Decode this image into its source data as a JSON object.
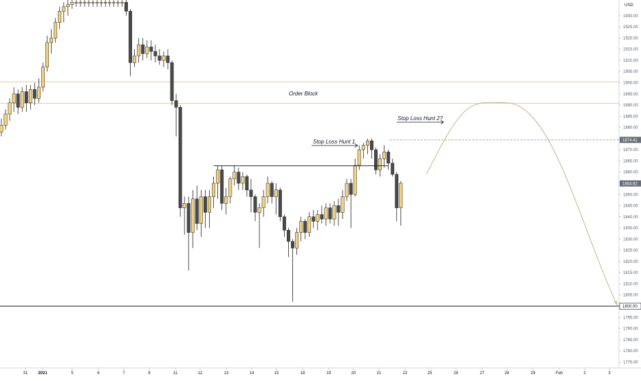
{
  "chart_data": {
    "type": "candlestick",
    "currency": "USD",
    "currency_label": "USD",
    "y_ticks": [
      1930,
      1925,
      1920,
      1915,
      1910,
      1905,
      1900,
      1895,
      1890,
      1885,
      1880,
      1875,
      1870,
      1865,
      1860,
      1855,
      1850,
      1845,
      1840,
      1835,
      1830,
      1825,
      1820,
      1815,
      1810,
      1805,
      1800,
      1795,
      1790,
      1785,
      1780,
      1775
    ],
    "y_tick_labels": [
      "1930.00",
      "1925.00",
      "1920.00",
      "1915.00",
      "1910.00",
      "1905.00",
      "1900.00",
      "1895.00",
      "1890.00",
      "1885.00",
      "1880.00",
      "1875.00",
      "1870.00",
      "1865.00",
      "1860.00",
      "1855.00",
      "1850.00",
      "1845.00",
      "1840.00",
      "1835.00",
      "1830.00",
      "1825.00",
      "1820.00",
      "1815.00",
      "1810.00",
      "1805.00",
      "1800.00",
      "1795.00",
      "1790.00",
      "1785.00",
      "1780.00",
      "1775.00"
    ],
    "date_labels": [
      {
        "label": "31",
        "date": "2020-12-31"
      },
      {
        "label": "2021",
        "date": "2021-01-01"
      },
      {
        "label": "5",
        "date": "2021-01-05"
      },
      {
        "label": "6",
        "date": "2021-01-06"
      },
      {
        "label": "7",
        "date": "2021-01-07"
      },
      {
        "label": "8",
        "date": "2021-01-08"
      },
      {
        "label": "11",
        "date": "2021-01-11"
      },
      {
        "label": "12",
        "date": "2021-01-12"
      },
      {
        "label": "13",
        "date": "2021-01-13"
      },
      {
        "label": "14",
        "date": "2021-01-14"
      },
      {
        "label": "15",
        "date": "2021-01-15"
      },
      {
        "label": "18",
        "date": "2021-01-18"
      },
      {
        "label": "19",
        "date": "2021-01-19"
      },
      {
        "label": "20",
        "date": "2021-01-20"
      },
      {
        "label": "21",
        "date": "2021-01-21"
      },
      {
        "label": "22",
        "date": "2021-01-22"
      },
      {
        "label": "25",
        "date": "2021-01-25"
      },
      {
        "label": "26",
        "date": "2021-01-26"
      },
      {
        "label": "27",
        "date": "2021-01-27"
      },
      {
        "label": "28",
        "date": "2021-01-28"
      },
      {
        "label": "29",
        "date": "2021-01-29"
      },
      {
        "label": "Feb",
        "date": "2021-02-01"
      },
      {
        "label": "2",
        "date": "2021-02-02"
      },
      {
        "label": "3",
        "date": "2021-02-03"
      }
    ],
    "candles": [
      {
        "o": 1878,
        "h": 1884,
        "l": 1876,
        "c": 1881
      },
      {
        "o": 1881,
        "h": 1888,
        "l": 1879,
        "c": 1886
      },
      {
        "o": 1886,
        "h": 1893,
        "l": 1883,
        "c": 1891
      },
      {
        "o": 1891,
        "h": 1898,
        "l": 1887,
        "c": 1895
      },
      {
        "o": 1895,
        "h": 1897,
        "l": 1886,
        "c": 1889
      },
      {
        "o": 1889,
        "h": 1898,
        "l": 1887,
        "c": 1896
      },
      {
        "o": 1896,
        "h": 1899,
        "l": 1887,
        "c": 1891
      },
      {
        "o": 1891,
        "h": 1899,
        "l": 1888,
        "c": 1897
      },
      {
        "o": 1897,
        "h": 1900,
        "l": 1890,
        "c": 1893
      },
      {
        "o": 1893,
        "h": 1902,
        "l": 1891,
        "c": 1898
      },
      {
        "o": 1898,
        "h": 1909,
        "l": 1896,
        "c": 1907
      },
      {
        "o": 1907,
        "h": 1921,
        "l": 1905,
        "c": 1918
      },
      {
        "o": 1918,
        "h": 1924,
        "l": 1913,
        "c": 1920
      },
      {
        "o": 1920,
        "h": 1929,
        "l": 1918,
        "c": 1927
      },
      {
        "o": 1927,
        "h": 1934,
        "l": 1924,
        "c": 1932
      },
      {
        "o": 1932,
        "h": 1936,
        "l": 1927,
        "c": 1934
      },
      {
        "o": 1934,
        "h": 1937,
        "l": 1930,
        "c": 1935
      },
      {
        "o": 1935,
        "h": 1937,
        "l": 1933,
        "c": 1936
      },
      {
        "o": 1936,
        "h": 1937,
        "l": 1934,
        "c": 1936
      },
      {
        "o": 1936,
        "h": 1937,
        "l": 1934,
        "c": 1936
      },
      {
        "o": 1936,
        "h": 1937,
        "l": 1934,
        "c": 1936
      },
      {
        "o": 1936,
        "h": 1937,
        "l": 1934,
        "c": 1936
      },
      {
        "o": 1936,
        "h": 1937,
        "l": 1934,
        "c": 1936
      },
      {
        "o": 1936,
        "h": 1937,
        "l": 1934,
        "c": 1936
      },
      {
        "o": 1936,
        "h": 1937,
        "l": 1934,
        "c": 1936
      },
      {
        "o": 1936,
        "h": 1937,
        "l": 1934,
        "c": 1936
      },
      {
        "o": 1936,
        "h": 1937,
        "l": 1934,
        "c": 1936
      },
      {
        "o": 1936,
        "h": 1937,
        "l": 1934,
        "c": 1936
      },
      {
        "o": 1936,
        "h": 1937,
        "l": 1934,
        "c": 1936
      },
      {
        "o": 1936,
        "h": 1937,
        "l": 1934,
        "c": 1936
      },
      {
        "o": 1936,
        "h": 1937,
        "l": 1930,
        "c": 1932
      },
      {
        "o": 1932,
        "h": 1933,
        "l": 1903,
        "c": 1909
      },
      {
        "o": 1909,
        "h": 1915,
        "l": 1907,
        "c": 1912
      },
      {
        "o": 1912,
        "h": 1920,
        "l": 1909,
        "c": 1917
      },
      {
        "o": 1917,
        "h": 1920,
        "l": 1910,
        "c": 1913
      },
      {
        "o": 1913,
        "h": 1919,
        "l": 1911,
        "c": 1916
      },
      {
        "o": 1916,
        "h": 1919,
        "l": 1910,
        "c": 1914
      },
      {
        "o": 1914,
        "h": 1917,
        "l": 1909,
        "c": 1912
      },
      {
        "o": 1912,
        "h": 1915,
        "l": 1908,
        "c": 1910
      },
      {
        "o": 1910,
        "h": 1914,
        "l": 1907,
        "c": 1912
      },
      {
        "o": 1912,
        "h": 1915,
        "l": 1906,
        "c": 1909
      },
      {
        "o": 1909,
        "h": 1910,
        "l": 1890,
        "c": 1892
      },
      {
        "o": 1892,
        "h": 1895,
        "l": 1876,
        "c": 1889
      },
      {
        "o": 1889,
        "h": 1890,
        "l": 1840,
        "c": 1844
      },
      {
        "o": 1844,
        "h": 1849,
        "l": 1832,
        "c": 1846
      },
      {
        "o": 1846,
        "h": 1849,
        "l": 1816,
        "c": 1833
      },
      {
        "o": 1833,
        "h": 1852,
        "l": 1826,
        "c": 1848
      },
      {
        "o": 1848,
        "h": 1854,
        "l": 1834,
        "c": 1837
      },
      {
        "o": 1837,
        "h": 1852,
        "l": 1831,
        "c": 1849
      },
      {
        "o": 1849,
        "h": 1852,
        "l": 1835,
        "c": 1842
      },
      {
        "o": 1842,
        "h": 1852,
        "l": 1835,
        "c": 1849
      },
      {
        "o": 1849,
        "h": 1858,
        "l": 1844,
        "c": 1855
      },
      {
        "o": 1855,
        "h": 1863,
        "l": 1848,
        "c": 1861
      },
      {
        "o": 1861,
        "h": 1863,
        "l": 1843,
        "c": 1846
      },
      {
        "o": 1846,
        "h": 1853,
        "l": 1841,
        "c": 1849
      },
      {
        "o": 1849,
        "h": 1858,
        "l": 1846,
        "c": 1857
      },
      {
        "o": 1857,
        "h": 1863,
        "l": 1854,
        "c": 1860
      },
      {
        "o": 1860,
        "h": 1862,
        "l": 1852,
        "c": 1855
      },
      {
        "o": 1855,
        "h": 1860,
        "l": 1852,
        "c": 1858
      },
      {
        "o": 1858,
        "h": 1859,
        "l": 1849,
        "c": 1852
      },
      {
        "o": 1852,
        "h": 1857,
        "l": 1842,
        "c": 1849
      },
      {
        "o": 1849,
        "h": 1850,
        "l": 1838,
        "c": 1842
      },
      {
        "o": 1842,
        "h": 1846,
        "l": 1826,
        "c": 1844
      },
      {
        "o": 1844,
        "h": 1852,
        "l": 1840,
        "c": 1849
      },
      {
        "o": 1849,
        "h": 1858,
        "l": 1846,
        "c": 1855
      },
      {
        "o": 1855,
        "h": 1856,
        "l": 1846,
        "c": 1849
      },
      {
        "o": 1849,
        "h": 1855,
        "l": 1841,
        "c": 1852
      },
      {
        "o": 1852,
        "h": 1853,
        "l": 1838,
        "c": 1840
      },
      {
        "o": 1840,
        "h": 1841,
        "l": 1831,
        "c": 1834
      },
      {
        "o": 1834,
        "h": 1835,
        "l": 1822,
        "c": 1829
      },
      {
        "o": 1829,
        "h": 1830,
        "l": 1802,
        "c": 1826
      },
      {
        "o": 1826,
        "h": 1835,
        "l": 1823,
        "c": 1833
      },
      {
        "o": 1833,
        "h": 1840,
        "l": 1829,
        "c": 1838
      },
      {
        "o": 1838,
        "h": 1839,
        "l": 1830,
        "c": 1833
      },
      {
        "o": 1833,
        "h": 1842,
        "l": 1831,
        "c": 1840
      },
      {
        "o": 1840,
        "h": 1843,
        "l": 1835,
        "c": 1838
      },
      {
        "o": 1838,
        "h": 1843,
        "l": 1834,
        "c": 1841
      },
      {
        "o": 1841,
        "h": 1845,
        "l": 1837,
        "c": 1839
      },
      {
        "o": 1839,
        "h": 1846,
        "l": 1836,
        "c": 1844
      },
      {
        "o": 1844,
        "h": 1846,
        "l": 1837,
        "c": 1839
      },
      {
        "o": 1839,
        "h": 1847,
        "l": 1836,
        "c": 1845
      },
      {
        "o": 1845,
        "h": 1848,
        "l": 1836,
        "c": 1842
      },
      {
        "o": 1842,
        "h": 1852,
        "l": 1839,
        "c": 1849
      },
      {
        "o": 1849,
        "h": 1857,
        "l": 1847,
        "c": 1855
      },
      {
        "o": 1855,
        "h": 1857,
        "l": 1835,
        "c": 1850
      },
      {
        "o": 1850,
        "h": 1866,
        "l": 1849,
        "c": 1863
      },
      {
        "o": 1863,
        "h": 1872,
        "l": 1861,
        "c": 1870
      },
      {
        "o": 1870,
        "h": 1873,
        "l": 1866,
        "c": 1872
      },
      {
        "o": 1872,
        "h": 1875,
        "l": 1868,
        "c": 1874
      },
      {
        "o": 1874,
        "h": 1875,
        "l": 1866,
        "c": 1870
      },
      {
        "o": 1870,
        "h": 1871,
        "l": 1859,
        "c": 1861
      },
      {
        "o": 1861,
        "h": 1868,
        "l": 1858,
        "c": 1866
      },
      {
        "o": 1866,
        "h": 1872,
        "l": 1862,
        "c": 1869
      },
      {
        "o": 1869,
        "h": 1870,
        "l": 1861,
        "c": 1864
      },
      {
        "o": 1864,
        "h": 1866,
        "l": 1858,
        "c": 1859
      },
      {
        "o": 1859,
        "h": 1860,
        "l": 1838,
        "c": 1844
      },
      {
        "o": 1844,
        "h": 1856,
        "l": 1836,
        "c": 1855
      }
    ],
    "order_block": {
      "high": 1900.4,
      "low": 1890.8
    },
    "resistance_line": {
      "level": 1862.8,
      "from_index": 51,
      "to_index": 93
    },
    "stop_hunt_level": 1874.41,
    "support_level": 1800.0,
    "last_price": 1854.92,
    "price_labels": {
      "high_label": "1874.41",
      "last_label": "1854.92",
      "support_label": "1800.00"
    },
    "projection": {
      "peak_date": "2021-01-28",
      "peak_price": 1891,
      "target_price": 1800
    },
    "annotations": {
      "order_block": "Order Block",
      "stop_loss_hunt_1": "Stop Loss Hunt 1",
      "stop_loss_hunt_2": "Stop Loss Hunt 2?"
    },
    "colors": {
      "up": "#f3d27f",
      "down": "#4a4a4a",
      "border": "#000000",
      "order_block_line": "#e4cda0",
      "projection": "#c7ab7a",
      "axis_text": "#5d606b",
      "label_bg": "#6b6f78"
    }
  }
}
